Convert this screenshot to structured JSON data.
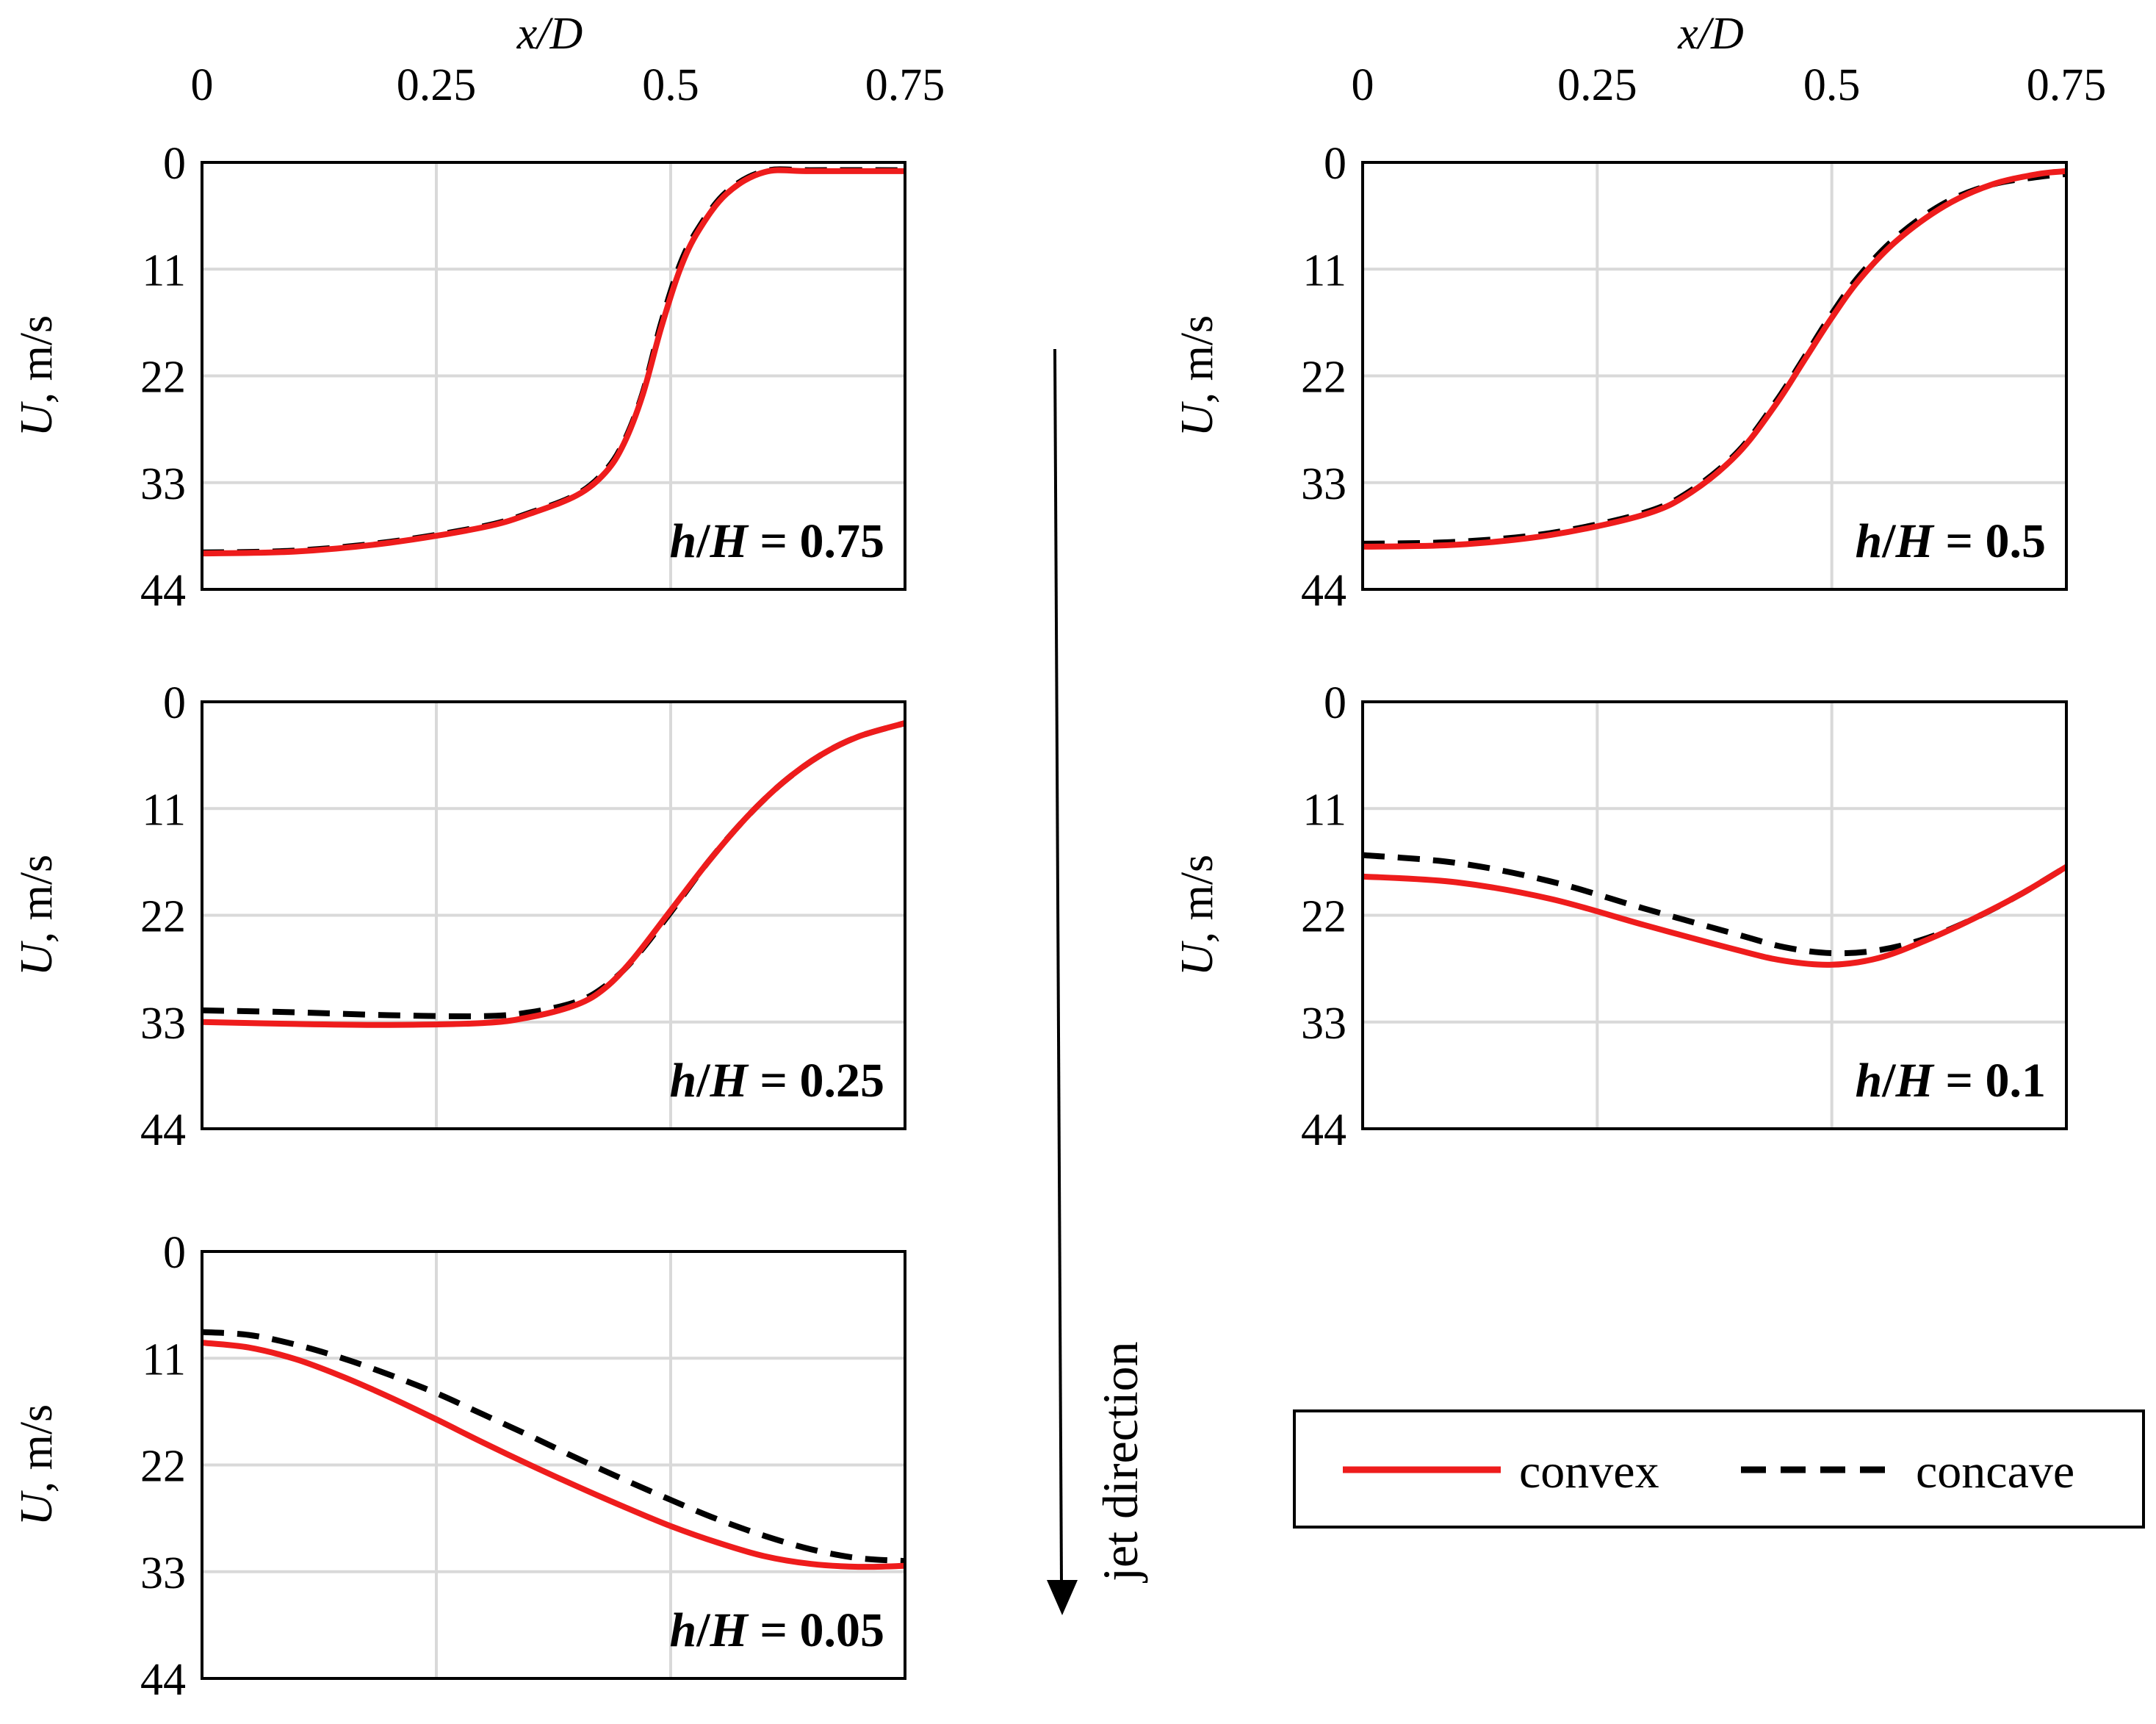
{
  "colors": {
    "convex": "#ee1c1c",
    "concave": "#000000",
    "grid": "#d9d9d9",
    "frame": "#000000"
  },
  "legend": {
    "convex": "convex",
    "concave": "concave"
  },
  "arrow_label": "jet direction",
  "chart_data": [
    {
      "type": "line",
      "annotation_prefix": "h/H = ",
      "annotation_value": "0.75",
      "xlabel": "x/D",
      "ylabel": "U, m/s",
      "x_ticks": [
        "0",
        "0.25",
        "0.5",
        "0.75"
      ],
      "y_ticks": [
        "0",
        "11",
        "22",
        "33",
        "44"
      ],
      "xlim": [
        0,
        0.75
      ],
      "ylim": [
        0,
        44
      ],
      "y_inverted": true,
      "show_x_axis_labels": true,
      "series": [
        {
          "name": "convex",
          "points": [
            [
              0,
              40.3
            ],
            [
              0.1,
              40.1
            ],
            [
              0.2,
              39.2
            ],
            [
              0.3,
              37.6
            ],
            [
              0.35,
              36.2
            ],
            [
              0.4,
              34.3
            ],
            [
              0.43,
              32.0
            ],
            [
              0.45,
              29.0
            ],
            [
              0.47,
              24.0
            ],
            [
              0.49,
              17.0
            ],
            [
              0.51,
              11.0
            ],
            [
              0.53,
              7.0
            ],
            [
              0.56,
              3.2
            ],
            [
              0.6,
              1.0
            ],
            [
              0.65,
              0.9
            ],
            [
              0.75,
              0.9
            ]
          ]
        },
        {
          "name": "concave",
          "points": [
            [
              0,
              40.2
            ],
            [
              0.1,
              40.0
            ],
            [
              0.2,
              39.1
            ],
            [
              0.3,
              37.5
            ],
            [
              0.35,
              36.1
            ],
            [
              0.4,
              34.2
            ],
            [
              0.43,
              31.8
            ],
            [
              0.45,
              28.8
            ],
            [
              0.47,
              23.8
            ],
            [
              0.49,
              16.5
            ],
            [
              0.51,
              10.5
            ],
            [
              0.53,
              6.7
            ],
            [
              0.56,
              3.0
            ],
            [
              0.6,
              0.9
            ],
            [
              0.65,
              0.8
            ],
            [
              0.75,
              0.8
            ]
          ]
        }
      ]
    },
    {
      "type": "line",
      "annotation_prefix": "h/H = ",
      "annotation_value": "0.5",
      "xlabel": "x/D",
      "ylabel": "U, m/s",
      "x_ticks": [
        "0",
        "0.25",
        "0.5",
        "0.75"
      ],
      "y_ticks": [
        "0",
        "11",
        "22",
        "33",
        "44"
      ],
      "xlim": [
        0,
        0.75
      ],
      "ylim": [
        0,
        44
      ],
      "y_inverted": true,
      "show_x_axis_labels": true,
      "series": [
        {
          "name": "convex",
          "points": [
            [
              0,
              39.6
            ],
            [
              0.1,
              39.4
            ],
            [
              0.2,
              38.4
            ],
            [
              0.3,
              36.3
            ],
            [
              0.35,
              34.0
            ],
            [
              0.4,
              30.0
            ],
            [
              0.44,
              25.0
            ],
            [
              0.47,
              20.5
            ],
            [
              0.5,
              16.0
            ],
            [
              0.53,
              12.0
            ],
            [
              0.57,
              8.0
            ],
            [
              0.62,
              4.5
            ],
            [
              0.67,
              2.3
            ],
            [
              0.72,
              1.2
            ],
            [
              0.75,
              0.9
            ]
          ]
        },
        {
          "name": "concave",
          "points": [
            [
              0,
              39.3
            ],
            [
              0.1,
              39.1
            ],
            [
              0.2,
              38.2
            ],
            [
              0.3,
              36.1
            ],
            [
              0.35,
              33.8
            ],
            [
              0.4,
              29.8
            ],
            [
              0.44,
              24.7
            ],
            [
              0.47,
              20.2
            ],
            [
              0.5,
              15.6
            ],
            [
              0.53,
              11.6
            ],
            [
              0.57,
              7.6
            ],
            [
              0.62,
              4.2
            ],
            [
              0.67,
              2.3
            ],
            [
              0.72,
              1.5
            ],
            [
              0.75,
              1.2
            ]
          ]
        }
      ]
    },
    {
      "type": "line",
      "annotation_prefix": "h/H = ",
      "annotation_value": "0.25",
      "xlabel": "x/D",
      "ylabel": "U, m/s",
      "x_ticks": [
        "0",
        "0.25",
        "0.5",
        "0.75"
      ],
      "y_ticks": [
        "0",
        "11",
        "22",
        "33",
        "44"
      ],
      "xlim": [
        0,
        0.75
      ],
      "ylim": [
        0,
        44
      ],
      "y_inverted": true,
      "show_x_axis_labels": false,
      "series": [
        {
          "name": "convex",
          "points": [
            [
              0,
              33.0
            ],
            [
              0.1,
              33.2
            ],
            [
              0.2,
              33.3
            ],
            [
              0.3,
              33.1
            ],
            [
              0.35,
              32.5
            ],
            [
              0.4,
              31.2
            ],
            [
              0.43,
              29.5
            ],
            [
              0.46,
              26.5
            ],
            [
              0.5,
              21.5
            ],
            [
              0.54,
              16.5
            ],
            [
              0.58,
              12.0
            ],
            [
              0.62,
              8.3
            ],
            [
              0.66,
              5.5
            ],
            [
              0.7,
              3.6
            ],
            [
              0.75,
              2.2
            ]
          ]
        },
        {
          "name": "concave",
          "points": [
            [
              0,
              31.8
            ],
            [
              0.1,
              32.0
            ],
            [
              0.2,
              32.3
            ],
            [
              0.3,
              32.4
            ],
            [
              0.35,
              32.0
            ],
            [
              0.4,
              30.9
            ],
            [
              0.43,
              29.3
            ],
            [
              0.46,
              26.6
            ],
            [
              0.5,
              21.7
            ],
            [
              0.54,
              16.5
            ],
            [
              0.58,
              12.0
            ],
            [
              0.62,
              8.3
            ],
            [
              0.66,
              5.5
            ],
            [
              0.7,
              3.6
            ],
            [
              0.75,
              2.2
            ]
          ]
        }
      ]
    },
    {
      "type": "line",
      "annotation_prefix": "h/H = ",
      "annotation_value": "0.1",
      "xlabel": "x/D",
      "ylabel": "U, m/s",
      "x_ticks": [
        "0",
        "0.25",
        "0.5",
        "0.75"
      ],
      "y_ticks": [
        "0",
        "11",
        "22",
        "33",
        "44"
      ],
      "xlim": [
        0,
        0.75
      ],
      "ylim": [
        0,
        44
      ],
      "y_inverted": true,
      "show_x_axis_labels": false,
      "series": [
        {
          "name": "convex",
          "points": [
            [
              0,
              18.0
            ],
            [
              0.1,
              18.6
            ],
            [
              0.2,
              20.3
            ],
            [
              0.3,
              23.0
            ],
            [
              0.4,
              25.6
            ],
            [
              0.45,
              26.7
            ],
            [
              0.5,
              27.1
            ],
            [
              0.55,
              26.4
            ],
            [
              0.6,
              24.6
            ],
            [
              0.65,
              22.4
            ],
            [
              0.7,
              19.9
            ],
            [
              0.75,
              17.0
            ]
          ]
        },
        {
          "name": "concave",
          "points": [
            [
              0,
              15.8
            ],
            [
              0.1,
              16.6
            ],
            [
              0.2,
              18.5
            ],
            [
              0.3,
              21.3
            ],
            [
              0.4,
              24.0
            ],
            [
              0.45,
              25.3
            ],
            [
              0.5,
              25.9
            ],
            [
              0.55,
              25.6
            ],
            [
              0.6,
              24.4
            ],
            [
              0.65,
              22.4
            ],
            [
              0.7,
              19.9
            ],
            [
              0.75,
              17.0
            ]
          ]
        }
      ]
    },
    {
      "type": "line",
      "annotation_prefix": "h/H = ",
      "annotation_value": "0.05",
      "xlabel": "x/D",
      "ylabel": "U, m/s",
      "x_ticks": [
        "0",
        "0.25",
        "0.5",
        "0.75"
      ],
      "y_ticks": [
        "0",
        "11",
        "22",
        "33",
        "44"
      ],
      "xlim": [
        0,
        0.75
      ],
      "ylim": [
        0,
        44
      ],
      "y_inverted": true,
      "show_x_axis_labels": false,
      "series": [
        {
          "name": "convex",
          "points": [
            [
              0,
              9.4
            ],
            [
              0.05,
              9.9
            ],
            [
              0.1,
              11.1
            ],
            [
              0.15,
              12.9
            ],
            [
              0.2,
              15.0
            ],
            [
              0.25,
              17.3
            ],
            [
              0.3,
              19.7
            ],
            [
              0.35,
              22.0
            ],
            [
              0.4,
              24.2
            ],
            [
              0.45,
              26.3
            ],
            [
              0.5,
              28.3
            ],
            [
              0.55,
              30.0
            ],
            [
              0.6,
              31.4
            ],
            [
              0.65,
              32.2
            ],
            [
              0.7,
              32.5
            ],
            [
              0.75,
              32.4
            ]
          ]
        },
        {
          "name": "concave",
          "points": [
            [
              0,
              8.3
            ],
            [
              0.05,
              8.6
            ],
            [
              0.1,
              9.6
            ],
            [
              0.15,
              11.0
            ],
            [
              0.2,
              12.7
            ],
            [
              0.25,
              14.6
            ],
            [
              0.3,
              16.8
            ],
            [
              0.35,
              19.0
            ],
            [
              0.4,
              21.3
            ],
            [
              0.45,
              23.5
            ],
            [
              0.5,
              25.6
            ],
            [
              0.55,
              27.6
            ],
            [
              0.6,
              29.3
            ],
            [
              0.65,
              30.7
            ],
            [
              0.7,
              31.6
            ],
            [
              0.75,
              31.9
            ]
          ]
        }
      ]
    }
  ]
}
